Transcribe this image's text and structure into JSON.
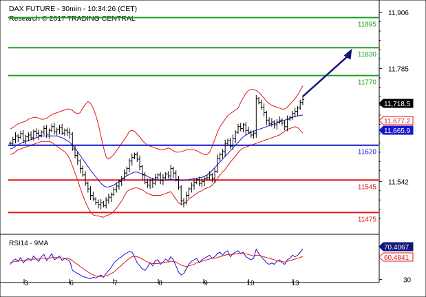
{
  "header": {
    "title": "DAX FUTURE - 30min - 10:34:26 (CET)",
    "subtitle": "Research © 2017 TRADING CENTRAL"
  },
  "rsi_panel": {
    "label": "RSI14 - 9MA"
  },
  "chart_data": [
    {
      "type": "candlestick",
      "title": "DAX FUTURE - 30min - 10:34:26 (CET)",
      "subtitle": "Research © 2017 TRADING CENTRAL",
      "ylim": [
        11440,
        11912
      ],
      "y_ticks": [
        {
          "value": 11906,
          "label": "11,906"
        },
        {
          "value": 11785,
          "label": "11,785"
        },
        {
          "value": 11542,
          "label": "11,542"
        }
      ],
      "x_ticks": [
        "3",
        "6",
        "7",
        "8",
        "9",
        "10",
        "13"
      ],
      "grid": false,
      "levels": [
        {
          "value": 11895,
          "label": "11895",
          "color": "#1e9e1e",
          "kind": "resistance"
        },
        {
          "value": 11830,
          "label": "11830",
          "color": "#1e9e1e",
          "kind": "resistance"
        },
        {
          "value": 11770,
          "label": "11770",
          "color": "#1e9e1e",
          "kind": "resistance"
        },
        {
          "value": 11620,
          "label": "11620",
          "color": "#1616d2",
          "kind": "pivot"
        },
        {
          "value": 11545,
          "label": "11545",
          "color": "#e01616",
          "kind": "support"
        },
        {
          "value": 11475,
          "label": "11475",
          "color": "#e01616",
          "kind": "support"
        }
      ],
      "price_tags": [
        {
          "value": 11718.5,
          "label": "11,718.5",
          "bg": "#000000",
          "fg": "#ffffff"
        },
        {
          "value": 11677.2,
          "label": "11,677.2",
          "bg": "#ffffff",
          "fg": "#e01616"
        },
        {
          "value": 11665.9,
          "label": "11,665.9",
          "bg": "#1616d2",
          "fg": "#ffffff"
        }
      ],
      "series": [
        {
          "name": "close",
          "color": "#000000",
          "values": [
            11624,
            11632,
            11640,
            11637,
            11645,
            11630,
            11638,
            11642,
            11636,
            11650,
            11646,
            11641,
            11648,
            11656,
            11644,
            11652,
            11660,
            11649,
            11654,
            11658,
            11646,
            11652,
            11648,
            11644,
            11612,
            11598,
            11586,
            11570,
            11556,
            11538,
            11526,
            11512,
            11504,
            11497,
            11492,
            11496,
            11490,
            11502,
            11508,
            11514,
            11524,
            11532,
            11542,
            11548,
            11560,
            11570,
            11586,
            11594,
            11600,
            11590,
            11574,
            11556,
            11540,
            11534,
            11544,
            11538,
            11550,
            11556,
            11544,
            11550,
            11558,
            11554,
            11570,
            11560,
            11546,
            11530,
            11500,
            11496,
            11512,
            11526,
            11534,
            11540,
            11546,
            11538,
            11542,
            11548,
            11550,
            11556,
            11548,
            11564,
            11592,
            11600,
            11606,
            11624,
            11630,
            11618,
            11635,
            11648,
            11660,
            11656,
            11664,
            11652,
            11648,
            11642,
            11646,
            11720,
            11712,
            11702,
            11690,
            11674,
            11666,
            11670,
            11664,
            11670,
            11674,
            11668,
            11660,
            11676,
            11680,
            11688,
            11693,
            11700,
            11712,
            11718.5
          ]
        },
        {
          "name": "upper band",
          "color": "#e01616",
          "values": [
            11655,
            11658,
            11662,
            11666,
            11668,
            11670,
            11672,
            11676,
            11678,
            11680,
            11680,
            11678,
            11676,
            11676,
            11678,
            11682,
            11686,
            11688,
            11690,
            11692,
            11694,
            11696,
            11698,
            11698,
            11695,
            11690,
            11688,
            11690,
            11700,
            11708,
            11714,
            11710,
            11700,
            11685,
            11665,
            11640,
            11615,
            11595,
            11590,
            11595,
            11600,
            11608,
            11616,
            11624,
            11632,
            11640,
            11650,
            11652,
            11650,
            11644,
            11638,
            11630,
            11625,
            11620,
            11618,
            11616,
            11614,
            11612,
            11610,
            11610,
            11612,
            11614,
            11612,
            11608,
            11605,
            11605,
            11606,
            11608,
            11610,
            11610,
            11610,
            11610,
            11608,
            11605,
            11602,
            11600,
            11600,
            11605,
            11618,
            11632,
            11648,
            11660,
            11668,
            11676,
            11684,
            11688,
            11692,
            11696,
            11700,
            11712,
            11722,
            11732,
            11738,
            11740,
            11740,
            11738,
            11734,
            11728,
            11722,
            11714,
            11710,
            11706,
            11704,
            11702,
            11700,
            11698,
            11698,
            11702,
            11708,
            11714,
            11720,
            11728,
            11738,
            11748
          ]
        },
        {
          "name": "lower band",
          "color": "#e01616",
          "values": [
            11600,
            11602,
            11606,
            11610,
            11612,
            11614,
            11616,
            11618,
            11620,
            11622,
            11624,
            11626,
            11628,
            11628,
            11628,
            11628,
            11626,
            11622,
            11618,
            11614,
            11610,
            11606,
            11600,
            11590,
            11575,
            11560,
            11545,
            11528,
            11512,
            11498,
            11486,
            11476,
            11470,
            11468,
            11468,
            11466,
            11465,
            11468,
            11470,
            11472,
            11478,
            11484,
            11492,
            11500,
            11510,
            11520,
            11524,
            11526,
            11528,
            11528,
            11526,
            11524,
            11520,
            11516,
            11514,
            11512,
            11512,
            11512,
            11512,
            11514,
            11516,
            11518,
            11520,
            11512,
            11504,
            11496,
            11492,
            11494,
            11498,
            11504,
            11508,
            11512,
            11516,
            11520,
            11522,
            11526,
            11528,
            11530,
            11534,
            11540,
            11548,
            11556,
            11562,
            11568,
            11576,
            11584,
            11590,
            11596,
            11604,
            11610,
            11614,
            11616,
            11618,
            11620,
            11622,
            11624,
            11626,
            11628,
            11630,
            11632,
            11634,
            11636,
            11638,
            11640,
            11642,
            11646,
            11650,
            11654,
            11656,
            11658,
            11660,
            11658,
            11652,
            11646
          ]
        },
        {
          "name": "moving average",
          "color": "#1616d2",
          "values": [
            11612,
            11614,
            11618,
            11621,
            11624,
            11626,
            11628,
            11630,
            11632,
            11634,
            11636,
            11638,
            11640,
            11640,
            11640,
            11640,
            11640,
            11640,
            11640,
            11638,
            11636,
            11633,
            11630,
            11626,
            11620,
            11614,
            11606,
            11598,
            11590,
            11582,
            11574,
            11566,
            11559,
            11552,
            11545,
            11538,
            11533,
            11530,
            11530,
            11532,
            11534,
            11538,
            11542,
            11546,
            11550,
            11554,
            11557,
            11560,
            11562,
            11562,
            11560,
            11558,
            11556,
            11553,
            11550,
            11548,
            11546,
            11545,
            11544,
            11544,
            11545,
            11546,
            11547,
            11546,
            11545,
            11544,
            11544,
            11544,
            11545,
            11546,
            11547,
            11548,
            11549,
            11550,
            11551,
            11553,
            11556,
            11560,
            11566,
            11572,
            11578,
            11584,
            11590,
            11596,
            11602,
            11608,
            11614,
            11620,
            11626,
            11632,
            11638,
            11642,
            11645,
            11648,
            11650,
            11652,
            11654,
            11656,
            11658,
            11660,
            11662,
            11664,
            11666,
            11668,
            11670,
            11672,
            11674,
            11676,
            11678,
            11680,
            11682,
            11683,
            11684,
            11685
          ]
        }
      ],
      "annotations": [
        {
          "type": "arrow",
          "from": {
            "x_index": 113,
            "y": 11725
          },
          "to": {
            "x_index": 132,
            "y": 11828
          },
          "color": "#14147a"
        }
      ]
    },
    {
      "type": "line",
      "title": "RSI14 - 9MA",
      "ylim": [
        27,
        85
      ],
      "y_ticks": [
        {
          "value": 30,
          "label": "30"
        }
      ],
      "price_tags": [
        {
          "value": 70.4067,
          "label": "70.4067",
          "bg": "#14147a",
          "fg": "#ffffff"
        },
        {
          "value": 60.4841,
          "label": "60.4841",
          "bg": "#ffffff",
          "fg": "#e01616"
        }
      ],
      "series": [
        {
          "name": "RSI14",
          "color": "#1616d2",
          "values": [
            50,
            55,
            57,
            54,
            59,
            52,
            56,
            58,
            55,
            61,
            57,
            54,
            60,
            63,
            55,
            59,
            64,
            56,
            58,
            61,
            55,
            58,
            56,
            54,
            42,
            40,
            38,
            36,
            34,
            33,
            32,
            31,
            33,
            32,
            34,
            36,
            33,
            38,
            42,
            46,
            52,
            55,
            58,
            60,
            63,
            65,
            67,
            66,
            60,
            52,
            48,
            44,
            42,
            46,
            52,
            48,
            55,
            56,
            50,
            53,
            57,
            54,
            60,
            56,
            48,
            40,
            36,
            38,
            44,
            50,
            54,
            56,
            58,
            52,
            56,
            58,
            60,
            62,
            58,
            60,
            64,
            66,
            62,
            66,
            68,
            60,
            64,
            66,
            68,
            64,
            66,
            60,
            58,
            56,
            58,
            70,
            64,
            60,
            56,
            52,
            50,
            52,
            50,
            54,
            56,
            52,
            50,
            56,
            58,
            62,
            60,
            62,
            66,
            70.4
          ]
        },
        {
          "name": "MA9",
          "color": "#e01616",
          "values": [
            52,
            53,
            54,
            54,
            55,
            55,
            55,
            56,
            56,
            57,
            57,
            57,
            58,
            58,
            58,
            58,
            59,
            59,
            59,
            59,
            58,
            58,
            58,
            57,
            55,
            52,
            50,
            47,
            45,
            42,
            40,
            38,
            36,
            35,
            34,
            34,
            34,
            35,
            36,
            38,
            40,
            43,
            46,
            49,
            52,
            55,
            58,
            60,
            61,
            60,
            59,
            57,
            55,
            53,
            52,
            51,
            51,
            51,
            52,
            52,
            53,
            53,
            54,
            54,
            53,
            51,
            49,
            48,
            47,
            48,
            49,
            50,
            52,
            53,
            54,
            55,
            56,
            57,
            58,
            58,
            59,
            60,
            61,
            62,
            63,
            63,
            63,
            64,
            64,
            65,
            64,
            64,
            63,
            62,
            61,
            62,
            62,
            61,
            60,
            59,
            58,
            57,
            56,
            55,
            54,
            54,
            53,
            54,
            55,
            56,
            57,
            58,
            59,
            60.5
          ]
        }
      ]
    }
  ]
}
